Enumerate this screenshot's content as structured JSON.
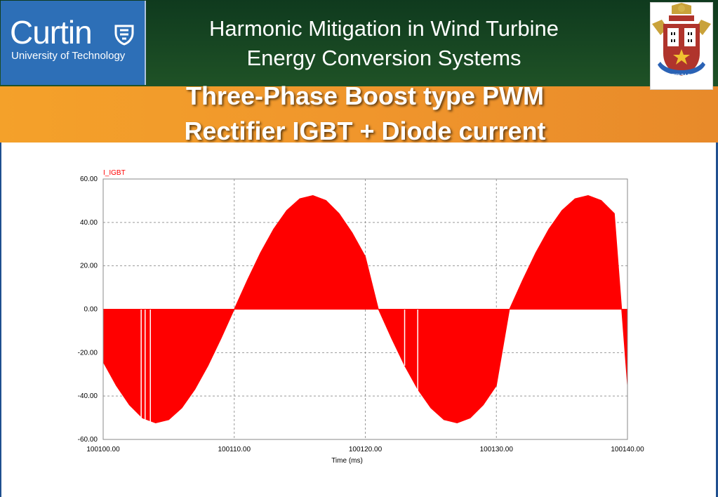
{
  "header": {
    "logo_word": "Curtin",
    "logo_subtitle": "University of Technology",
    "title_line1": "Harmonic Mitigation in Wind Turbine",
    "title_line2": "Energy Conversion Systems",
    "crest_motto": "AD VERVM DUCIT"
  },
  "slide": {
    "title_line1": "Three-Phase Boost type PWM",
    "title_line2": "Rectifier IGBT + Diode current"
  },
  "colors": {
    "series": "#ff0000",
    "header_green": "#1a4a22",
    "orange": "#f39a2b",
    "logo_blue": "#2d6fb7"
  },
  "chart_data": {
    "type": "area",
    "title": "",
    "series": [
      {
        "name": "I_IGBT",
        "x": [
          100100,
          100101,
          100102,
          100103,
          100104,
          100105,
          100106,
          100107,
          100108,
          100109,
          100110,
          100111,
          100112,
          100113,
          100114,
          100115,
          100116,
          100117,
          100118,
          100119,
          100120,
          100121,
          100122,
          100123,
          100124,
          100125,
          100126,
          100127,
          100128,
          100129,
          100130,
          100131,
          100132,
          100133,
          100134,
          100135,
          100136,
          100137,
          100138,
          100139,
          100140
        ],
        "y": [
          -24.3,
          -35.2,
          -44.1,
          -50.1,
          -52.4,
          -50.9,
          -45.5,
          -36.9,
          -26.0,
          -13.4,
          0,
          13.4,
          26.0,
          36.9,
          45.5,
          50.9,
          52.4,
          50.1,
          44.1,
          35.2,
          24.3,
          0,
          -13.4,
          -26.0,
          -36.9,
          -45.5,
          -50.9,
          -52.4,
          -50.1,
          -44.1,
          -35.2,
          0,
          13.4,
          26.0,
          36.9,
          45.5,
          50.9,
          52.4,
          50.1,
          44.1,
          -35.0
        ]
      }
    ],
    "xlabel": "Time (ms)",
    "ylabel": "",
    "xlim": [
      100100,
      100140
    ],
    "ylim": [
      -60,
      60
    ],
    "x_ticks": [
      "100100.00",
      "100110.00",
      "100120.00",
      "100130.00",
      "100140.00"
    ],
    "y_ticks": [
      "60.00",
      "40.00",
      "20.00",
      "0.00",
      "-20.00",
      "-40.00",
      "-60.00"
    ],
    "grid": true,
    "grid_style": "dashed",
    "legend_position": "top-left",
    "notch_x": [
      100102.9,
      100103.2,
      100103.6,
      100123.0,
      100124.0
    ],
    "notch_depth": [
      -52,
      -52,
      -52,
      -26,
      -50
    ]
  }
}
